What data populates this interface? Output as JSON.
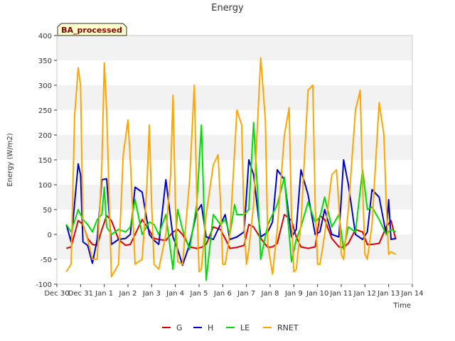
{
  "chart_data": {
    "type": "line",
    "title": "Energy",
    "xlabel": "Time",
    "ylabel": "Energy (W/m2)",
    "ylim": [
      -100,
      400
    ],
    "yticks": [
      -100,
      -50,
      0,
      50,
      100,
      150,
      200,
      250,
      300,
      350,
      400
    ],
    "xlim": [
      0,
      15
    ],
    "xtick_labels": [
      "Dec 30",
      "Dec 31",
      "Jan 1",
      "Jan 2",
      "Jan 3",
      "Jan 4",
      "Jan 5",
      "Jan 6",
      "Jan 7",
      "Jan 8",
      "Jan 9",
      "Jan 10",
      "Jan 11",
      "Jan 12",
      "Jan 13",
      "Jan 14"
    ],
    "annotation": "BA_processed",
    "grid": "horizontal bands",
    "legend_position": "bottom-center",
    "series": [
      {
        "name": "G",
        "color": "#dd0000",
        "x": [
          0.4,
          0.6,
          0.9,
          1.1,
          1.3,
          1.5,
          1.7,
          1.9,
          2.1,
          2.3,
          2.6,
          2.9,
          3.1,
          3.3,
          3.6,
          3.9,
          4.1,
          4.3,
          4.6,
          4.9,
          5.1,
          5.3,
          5.6,
          5.9,
          6.1,
          6.3,
          6.6,
          6.9,
          7.1,
          7.3,
          7.6,
          7.9,
          8.1,
          8.3,
          8.6,
          8.9,
          9.1,
          9.3,
          9.6,
          9.9,
          10.1,
          10.3,
          10.6,
          10.9,
          11.1,
          11.3,
          11.6,
          11.9,
          12.1,
          12.3,
          12.6,
          12.9,
          13.1,
          13.3,
          13.6,
          13.9,
          14.1,
          14.3
        ],
        "y": [
          -28,
          -25,
          28,
          20,
          -8,
          -20,
          -22,
          10,
          38,
          28,
          -10,
          -22,
          -20,
          0,
          30,
          8,
          -8,
          -10,
          -12,
          5,
          10,
          0,
          -25,
          -28,
          -26,
          -20,
          15,
          10,
          -8,
          -28,
          -26,
          -22,
          20,
          15,
          -8,
          -26,
          -25,
          -18,
          40,
          28,
          -5,
          -25,
          -28,
          -25,
          38,
          30,
          -8,
          -25,
          -26,
          -18,
          10,
          5,
          -20,
          -20,
          -18,
          15,
          28,
          -10
        ]
      },
      {
        "name": "H",
        "color": "#0000cc",
        "x": [
          0.4,
          0.6,
          0.9,
          1.0,
          1.1,
          1.3,
          1.5,
          1.7,
          1.9,
          2.1,
          2.3,
          2.6,
          2.9,
          3.1,
          3.3,
          3.6,
          3.9,
          4.1,
          4.3,
          4.6,
          4.9,
          5.1,
          5.3,
          5.6,
          5.9,
          6.1,
          6.3,
          6.6,
          6.9,
          7.1,
          7.3,
          7.6,
          7.9,
          8.1,
          8.3,
          8.6,
          8.9,
          9.1,
          9.3,
          9.6,
          9.9,
          10.1,
          10.3,
          10.6,
          10.9,
          11.1,
          11.3,
          11.6,
          11.9,
          12.1,
          12.3,
          12.6,
          12.9,
          13.1,
          13.3,
          13.6,
          13.9,
          14.0,
          14.1,
          14.3
        ],
        "y": [
          20,
          -15,
          142,
          120,
          -15,
          -22,
          -58,
          -10,
          110,
          112,
          -20,
          -10,
          -8,
          0,
          95,
          85,
          0,
          -12,
          -20,
          110,
          -5,
          -30,
          -62,
          -20,
          45,
          60,
          -5,
          -10,
          20,
          40,
          -10,
          -5,
          5,
          150,
          120,
          -5,
          5,
          25,
          130,
          110,
          -5,
          10,
          130,
          80,
          0,
          5,
          50,
          0,
          -5,
          150,
          100,
          0,
          -10,
          5,
          90,
          75,
          0,
          70,
          -10,
          -8
        ]
      },
      {
        "name": "LE",
        "color": "#00dd00",
        "x": [
          0.4,
          0.6,
          0.9,
          1.1,
          1.3,
          1.5,
          1.7,
          1.9,
          2.0,
          2.1,
          2.3,
          2.6,
          2.9,
          3.1,
          3.3,
          3.6,
          3.9,
          4.1,
          4.3,
          4.6,
          4.9,
          5.1,
          5.3,
          5.6,
          5.9,
          6.1,
          6.3,
          6.6,
          6.9,
          7.1,
          7.3,
          7.5,
          7.6,
          7.9,
          8.1,
          8.3,
          8.5,
          8.6,
          8.9,
          9.1,
          9.3,
          9.6,
          9.9,
          10.1,
          10.3,
          10.6,
          10.9,
          11.1,
          11.3,
          11.6,
          11.9,
          12.1,
          12.3,
          12.6,
          12.9,
          13.1,
          13.3,
          13.6,
          13.9,
          14.1,
          14.3
        ],
        "y": [
          20,
          5,
          50,
          30,
          20,
          5,
          30,
          40,
          95,
          15,
          0,
          10,
          5,
          15,
          70,
          0,
          25,
          20,
          0,
          40,
          -70,
          50,
          10,
          -30,
          60,
          220,
          -92,
          40,
          20,
          30,
          0,
          60,
          40,
          40,
          50,
          225,
          60,
          -50,
          20,
          40,
          60,
          115,
          -55,
          -10,
          15,
          65,
          25,
          35,
          75,
          15,
          40,
          -30,
          15,
          5,
          130,
          50,
          55,
          30,
          0,
          10,
          5
        ]
      },
      {
        "name": "RNET",
        "color": "#ffa500",
        "x": [
          0.4,
          0.6,
          0.75,
          0.9,
          1.0,
          1.1,
          1.3,
          1.5,
          1.7,
          1.9,
          2.0,
          2.1,
          2.3,
          2.6,
          2.8,
          3.0,
          3.1,
          3.3,
          3.6,
          3.8,
          3.9,
          4.0,
          4.1,
          4.3,
          4.6,
          4.8,
          4.9,
          5.0,
          5.1,
          5.3,
          5.6,
          5.8,
          5.9,
          6.0,
          6.1,
          6.3,
          6.6,
          6.8,
          6.9,
          7.0,
          7.1,
          7.3,
          7.6,
          7.8,
          7.9,
          8.0,
          8.1,
          8.3,
          8.6,
          8.8,
          8.9,
          9.0,
          9.1,
          9.3,
          9.6,
          9.8,
          9.9,
          10.0,
          10.1,
          10.3,
          10.6,
          10.8,
          10.9,
          11.0,
          11.1,
          11.3,
          11.6,
          11.8,
          11.9,
          12.0,
          12.1,
          12.3,
          12.6,
          12.8,
          12.9,
          13.0,
          13.1,
          13.3,
          13.6,
          13.8,
          13.9,
          14.0,
          14.1,
          14.3
        ],
        "y": [
          -75,
          -60,
          240,
          335,
          300,
          20,
          -10,
          -50,
          -50,
          140,
          345,
          250,
          -85,
          -60,
          160,
          230,
          150,
          -60,
          -50,
          100,
          220,
          60,
          -60,
          -70,
          0,
          120,
          280,
          60,
          -55,
          -60,
          110,
          300,
          80,
          -75,
          -70,
          40,
          140,
          160,
          70,
          -60,
          -60,
          0,
          250,
          220,
          20,
          -60,
          -30,
          60,
          355,
          230,
          -20,
          -50,
          -80,
          10,
          200,
          255,
          40,
          -75,
          -70,
          20,
          290,
          300,
          60,
          -60,
          -60,
          0,
          120,
          130,
          60,
          -40,
          -50,
          50,
          250,
          290,
          100,
          -40,
          -50,
          20,
          265,
          200,
          60,
          -40,
          -35,
          -40
        ]
      }
    ]
  }
}
